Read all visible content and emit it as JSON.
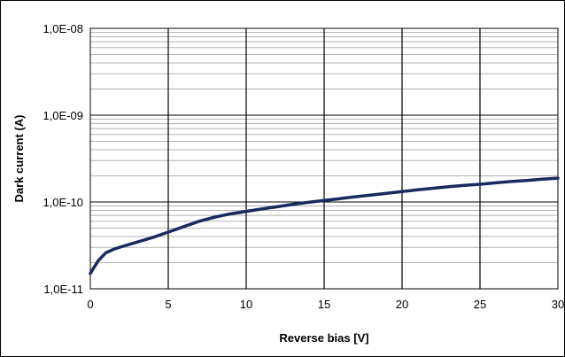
{
  "chart_data": {
    "type": "line",
    "xlabel": "Reverse bias [V]",
    "ylabel": "Dark current  (A)",
    "xlim": [
      0,
      30
    ],
    "ylim": [
      1e-11,
      1e-08
    ],
    "yscale": "log",
    "grid": true,
    "legend": "none",
    "x_ticks": [
      "0",
      "5",
      "10",
      "15",
      "20",
      "25",
      "30"
    ],
    "y_ticks": [
      "1,0E-11",
      "1,0E-10",
      "1,0E-09",
      "1,0E-08"
    ],
    "series": [
      {
        "color": "#1a2a5e",
        "x": [
          0,
          0.5,
          1,
          1.5,
          2,
          3,
          4,
          5,
          6,
          7,
          8,
          9,
          10,
          11,
          12,
          13,
          14,
          15,
          16,
          17,
          18,
          19,
          20,
          21,
          22,
          23,
          24,
          25,
          26,
          27,
          28,
          29,
          30
        ],
        "y": [
          1.5e-11,
          2.1e-11,
          2.6e-11,
          2.85e-11,
          3.05e-11,
          3.45e-11,
          3.9e-11,
          4.5e-11,
          5.2e-11,
          6e-11,
          6.7e-11,
          7.3e-11,
          7.8e-11,
          8.3e-11,
          8.8e-11,
          9.4e-11,
          9.9e-11,
          1.04e-10,
          1.09e-10,
          1.15e-10,
          1.2e-10,
          1.26e-10,
          1.32e-10,
          1.38e-10,
          1.44e-10,
          1.5e-10,
          1.55e-10,
          1.6e-10,
          1.66e-10,
          1.72e-10,
          1.77e-10,
          1.83e-10,
          1.88e-10
        ]
      }
    ]
  }
}
